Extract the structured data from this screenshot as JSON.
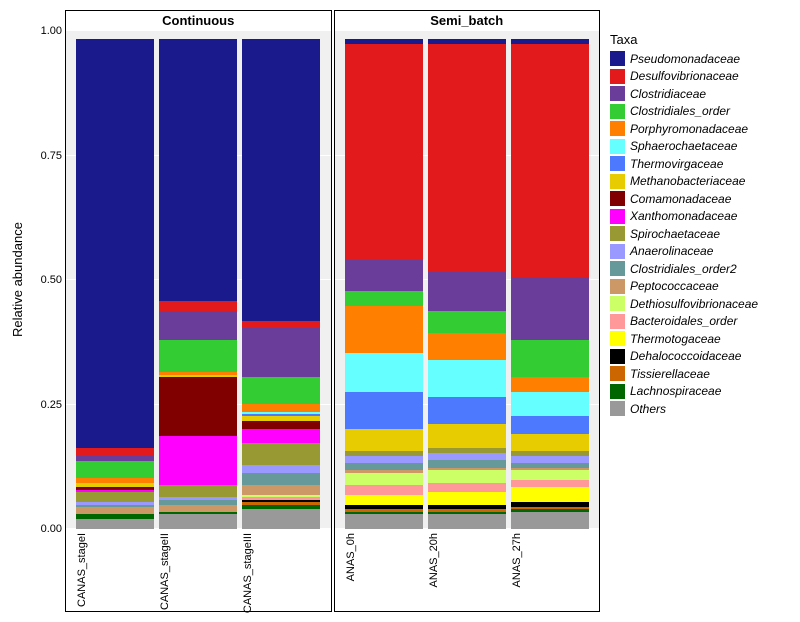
{
  "ylabel": "Relative abundance",
  "legend_title": "Taxa",
  "yticks": [
    0.0,
    0.25,
    0.5,
    0.75,
    1.0
  ],
  "taxa": [
    {
      "name": "Pseudomonadaceae",
      "color": "#1a1a8c"
    },
    {
      "name": "Desulfovibrionaceae",
      "color": "#e31a1c"
    },
    {
      "name": "Clostridiaceae",
      "color": "#6a3d9a"
    },
    {
      "name": "Clostridiales_order",
      "color": "#33cc33"
    },
    {
      "name": "Porphyromonadaceae",
      "color": "#ff7f00"
    },
    {
      "name": "Sphaerochaetaceae",
      "color": "#66ffff"
    },
    {
      "name": "Thermovirgaceae",
      "color": "#4d79ff"
    },
    {
      "name": "Methanobacteriaceae",
      "color": "#e6cc00"
    },
    {
      "name": "Comamonadaceae",
      "color": "#800000"
    },
    {
      "name": "Xanthomonadaceae",
      "color": "#ff00ff"
    },
    {
      "name": "Spirochaetaceae",
      "color": "#999933"
    },
    {
      "name": "Anaerolinaceae",
      "color": "#9999ff"
    },
    {
      "name": "Clostridiales_order2",
      "color": "#669999"
    },
    {
      "name": "Peptococcaceae",
      "color": "#cc9966"
    },
    {
      "name": "Dethiosulfovibrionaceae",
      "color": "#ccff66"
    },
    {
      "name": "Bacteroidales_order",
      "color": "#ff9999"
    },
    {
      "name": "Thermotogaceae",
      "color": "#ffff00"
    },
    {
      "name": "Dehalococcoidaceae",
      "color": "#000000"
    },
    {
      "name": "Tissierellaceae",
      "color": "#cc6600"
    },
    {
      "name": "Lachnospiraceae",
      "color": "#006600"
    },
    {
      "name": "Others",
      "color": "#999999"
    }
  ],
  "panels": [
    {
      "title": "Continuous",
      "show_yticks": true,
      "bars": [
        {
          "label": "CANAS_stageI",
          "segments": {
            "Others": 0.02,
            "Lachnospiraceae": 0.01,
            "Tissierellaceae": 0.0,
            "Dehalococcoidaceae": 0.0,
            "Thermotogaceae": 0.0,
            "Bacteroidales_order": 0.0,
            "Dethiosulfovibrionaceae": 0.0,
            "Peptococcaceae": 0.015,
            "Clostridiales_order2": 0.005,
            "Anaerolinaceae": 0.005,
            "Spirochaetaceae": 0.02,
            "Xanthomonadaceae": 0.005,
            "Comamonadaceae": 0.005,
            "Methanobacteriaceae": 0.01,
            "Thermovirgaceae": 0.0,
            "Sphaerochaetaceae": 0.0,
            "Porphyromonadaceae": 0.01,
            "Clostridiales_order": 0.035,
            "Clostridiaceae": 0.01,
            "Desulfovibrionaceae": 0.015,
            "Pseudomonadaceae": 0.835
          }
        },
        {
          "label": "CANAS_stageII",
          "segments": {
            "Others": 0.03,
            "Lachnospiraceae": 0.005,
            "Tissierellaceae": 0.0,
            "Dehalococcoidaceae": 0.0,
            "Thermotogaceae": 0.0,
            "Bacteroidales_order": 0.0,
            "Dethiosulfovibrionaceae": 0.0,
            "Peptococcaceae": 0.015,
            "Clostridiales_order2": 0.01,
            "Anaerolinaceae": 0.005,
            "Spirochaetaceae": 0.025,
            "Xanthomonadaceae": 0.1,
            "Comamonadaceae": 0.12,
            "Methanobacteriaceae": 0.005,
            "Thermovirgaceae": 0.0,
            "Sphaerochaetaceae": 0.0,
            "Porphyromonadaceae": 0.005,
            "Clostridiales_order": 0.065,
            "Clostridiaceae": 0.06,
            "Desulfovibrionaceae": 0.02,
            "Pseudomonadaceae": 0.535
          }
        },
        {
          "label": "CANAS_stageIII",
          "segments": {
            "Others": 0.04,
            "Lachnospiraceae": 0.01,
            "Tissierellaceae": 0.005,
            "Dehalococcoidaceae": 0.005,
            "Thermotogaceae": 0.0,
            "Bacteroidales_order": 0.005,
            "Dethiosulfovibrionaceae": 0.005,
            "Peptococcaceae": 0.02,
            "Clostridiales_order2": 0.025,
            "Anaerolinaceae": 0.015,
            "Spirochaetaceae": 0.045,
            "Xanthomonadaceae": 0.03,
            "Comamonadaceae": 0.015,
            "Methanobacteriaceae": 0.01,
            "Thermovirgaceae": 0.005,
            "Sphaerochaetaceae": 0.005,
            "Porphyromonadaceae": 0.015,
            "Clostridiales_order": 0.055,
            "Clostridiaceae": 0.1,
            "Desulfovibrionaceae": 0.015,
            "Pseudomonadaceae": 0.575
          }
        }
      ]
    },
    {
      "title": "Semi_batch",
      "show_yticks": false,
      "bars": [
        {
          "label": "ANAS_0h",
          "segments": {
            "Others": 0.03,
            "Lachnospiraceae": 0.005,
            "Tissierellaceae": 0.005,
            "Dehalococcoidaceae": 0.01,
            "Thermotogaceae": 0.02,
            "Bacteroidales_order": 0.02,
            "Dethiosulfovibrionaceae": 0.025,
            "Peptococcaceae": 0.005,
            "Clostridiales_order2": 0.015,
            "Anaerolinaceae": 0.015,
            "Spirochaetaceae": 0.01,
            "Xanthomonadaceae": 0.0,
            "Comamonadaceae": 0.0,
            "Methanobacteriaceae": 0.045,
            "Thermovirgaceae": 0.075,
            "Sphaerochaetaceae": 0.08,
            "Porphyromonadaceae": 0.095,
            "Clostridiales_order": 0.03,
            "Clostridiaceae": 0.065,
            "Desulfovibrionaceae": 0.44,
            "Pseudomonadaceae": 0.01
          }
        },
        {
          "label": "ANAS_20h",
          "segments": {
            "Others": 0.03,
            "Lachnospiraceae": 0.005,
            "Tissierellaceae": 0.005,
            "Dehalococcoidaceae": 0.01,
            "Thermotogaceae": 0.025,
            "Bacteroidales_order": 0.02,
            "Dethiosulfovibrionaceae": 0.025,
            "Peptococcaceae": 0.005,
            "Clostridiales_order2": 0.015,
            "Anaerolinaceae": 0.015,
            "Spirochaetaceae": 0.01,
            "Xanthomonadaceae": 0.0,
            "Comamonadaceae": 0.0,
            "Methanobacteriaceae": 0.05,
            "Thermovirgaceae": 0.055,
            "Sphaerochaetaceae": 0.075,
            "Porphyromonadaceae": 0.055,
            "Clostridiales_order": 0.045,
            "Clostridiaceae": 0.08,
            "Desulfovibrionaceae": 0.465,
            "Pseudomonadaceae": 0.01
          }
        },
        {
          "label": "ANAS_27h",
          "segments": {
            "Others": 0.035,
            "Lachnospiraceae": 0.005,
            "Tissierellaceae": 0.005,
            "Dehalococcoidaceae": 0.01,
            "Thermotogaceae": 0.03,
            "Bacteroidales_order": 0.015,
            "Dethiosulfovibrionaceae": 0.02,
            "Peptococcaceae": 0.005,
            "Clostridiales_order2": 0.01,
            "Anaerolinaceae": 0.015,
            "Spirochaetaceae": 0.01,
            "Xanthomonadaceae": 0.0,
            "Comamonadaceae": 0.0,
            "Methanobacteriaceae": 0.035,
            "Thermovirgaceae": 0.035,
            "Sphaerochaetaceae": 0.05,
            "Porphyromonadaceae": 0.03,
            "Clostridiales_order": 0.075,
            "Clostridiaceae": 0.13,
            "Desulfovibrionaceae": 0.475,
            "Pseudomonadaceae": 0.01
          }
        }
      ]
    }
  ]
}
